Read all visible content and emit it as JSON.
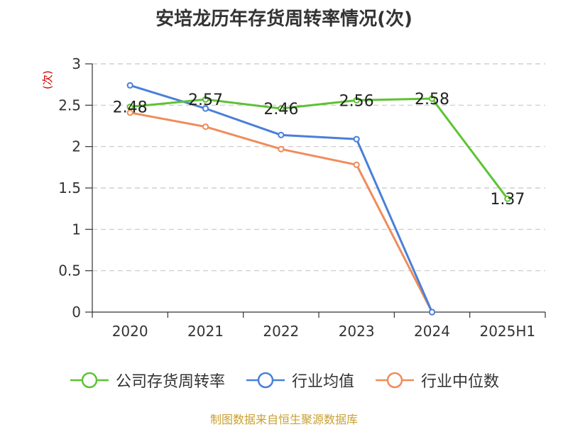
{
  "title": "安培龙历年存货周转率情况(次)",
  "source": "制图数据来自恒生聚源数据库",
  "chart_data": {
    "type": "line",
    "title": "安培龙历年存货周转率情况(次)",
    "ylabel": "(次)",
    "xlabel": "",
    "categories": [
      "2020",
      "2021",
      "2022",
      "2023",
      "2024",
      "2025H1"
    ],
    "yticks": [
      "0",
      "0.5",
      "1",
      "1.5",
      "2",
      "2.5",
      "3"
    ],
    "ylim": [
      0,
      3
    ],
    "grid": true,
    "legend_position": "bottom",
    "series": [
      {
        "name": "公司存货周转率",
        "color": "#5cc334",
        "values": [
          2.48,
          2.57,
          2.46,
          2.56,
          2.58,
          1.37
        ],
        "labels": [
          "2.48",
          "2.57",
          "2.46",
          "2.56",
          "2.58",
          "1.37"
        ]
      },
      {
        "name": "行业均值",
        "color": "#4a7fd9",
        "values": [
          2.74,
          2.46,
          2.14,
          2.09,
          0,
          null
        ],
        "labels": []
      },
      {
        "name": "行业中位数",
        "color": "#f08c5a",
        "values": [
          2.41,
          2.24,
          1.97,
          1.78,
          0,
          null
        ],
        "labels": []
      }
    ]
  }
}
